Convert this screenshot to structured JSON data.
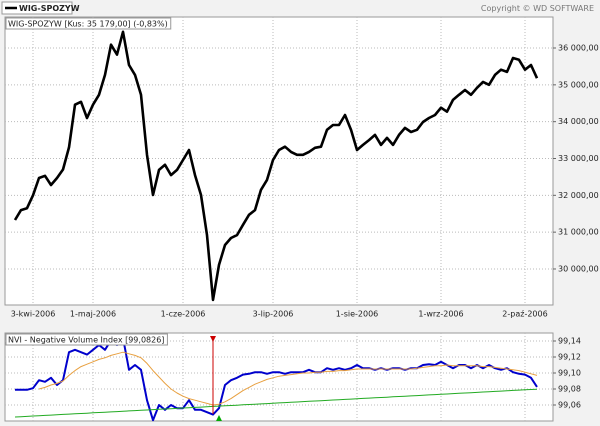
{
  "header": {
    "legend": "WIG-SPOZYW",
    "copyright": "Copyright © WD SOFTWARE"
  },
  "chart_data": [
    {
      "type": "line",
      "title": "WIG-SPOZYW [Kus: 35 179,00] (-0,83%)",
      "categories": [
        null,
        null,
        null,
        "3-kwi-2006",
        null,
        null,
        null,
        null,
        null,
        null,
        null,
        null,
        null,
        "1-maj-2006",
        null,
        null,
        null,
        null,
        null,
        null,
        null,
        null,
        null,
        null,
        null,
        null,
        null,
        null,
        "1-cze-2006",
        null,
        null,
        null,
        null,
        null,
        null,
        null,
        null,
        null,
        null,
        null,
        null,
        null,
        null,
        "3-lip-2006",
        null,
        null,
        null,
        null,
        null,
        null,
        null,
        null,
        null,
        null,
        null,
        null,
        null,
        "1-sie-2006",
        null,
        null,
        null,
        null,
        null,
        null,
        null,
        null,
        null,
        null,
        null,
        null,
        null,
        "1-wrz-2006",
        null,
        null,
        null,
        null,
        null,
        null,
        null,
        null,
        null,
        null,
        null,
        null,
        null,
        "2-paź-2006",
        null,
        null
      ],
      "series": [
        {
          "name": "WIG-SPOZYW",
          "color": "#000000",
          "values": [
            31330,
            31600,
            31650,
            32000,
            32470,
            32530,
            32280,
            32470,
            32700,
            33300,
            34460,
            34540,
            34100,
            34460,
            34730,
            35270,
            36090,
            35820,
            36440,
            35540,
            35270,
            34730,
            33100,
            32010,
            32690,
            32830,
            32550,
            32690,
            32960,
            33230,
            32550,
            32010,
            30920,
            29160,
            30110,
            30650,
            30840,
            30920,
            31200,
            31470,
            31600,
            32150,
            32420,
            32960,
            33230,
            33320,
            33180,
            33100,
            33100,
            33180,
            33290,
            33320,
            33780,
            33910,
            33910,
            34180,
            33780,
            33230,
            33370,
            33500,
            33640,
            33370,
            33560,
            33370,
            33640,
            33830,
            33720,
            33780,
            33990,
            34100,
            34180,
            34380,
            34270,
            34590,
            34730,
            34860,
            34730,
            34920,
            35080,
            35000,
            35270,
            35410,
            35350,
            35730,
            35680,
            35410,
            35540,
            35179
          ]
        }
      ],
      "ylim": [
        29022,
        36842
      ],
      "yticks": [
        {
          "value": 30000,
          "label": "30 000,00"
        },
        {
          "value": 31000,
          "label": "31 000,00"
        },
        {
          "value": 32000,
          "label": "32 000,00"
        },
        {
          "value": 33000,
          "label": "33 000,00"
        },
        {
          "value": 34000,
          "label": "34 000,00"
        },
        {
          "value": 35000,
          "label": "35 000,00"
        },
        {
          "value": 36000,
          "label": "36 000,00"
        }
      ],
      "grid": true
    },
    {
      "type": "line",
      "title": "NVI - Negative Volume Index [99,0826]",
      "series": [
        {
          "color": "#0000cc",
          "values": [
            99.079,
            99.079,
            99.079,
            99.081,
            99.091,
            99.089,
            99.094,
            99.085,
            99.091,
            99.126,
            99.129,
            99.126,
            99.123,
            99.129,
            99.135,
            99.129,
            99.141,
            99.135,
            99.144,
            99.104,
            99.11,
            99.104,
            99.066,
            99.041,
            99.06,
            99.054,
            99.06,
            99.056,
            99.056,
            99.066,
            99.054,
            99.054,
            99.051,
            99.048,
            99.056,
            99.085,
            99.091,
            99.094,
            99.098,
            99.099,
            99.101,
            99.101,
            99.099,
            99.101,
            99.101,
            99.099,
            99.101,
            99.101,
            99.101,
            99.104,
            99.101,
            99.101,
            99.106,
            99.104,
            99.106,
            99.104,
            99.106,
            99.11,
            99.106,
            99.106,
            99.104,
            99.106,
            99.104,
            99.106,
            99.106,
            99.104,
            99.106,
            99.106,
            99.11,
            99.111,
            99.11,
            99.114,
            99.11,
            99.106,
            99.11,
            99.11,
            99.106,
            99.11,
            99.106,
            99.11,
            99.106,
            99.104,
            99.106,
            99.101,
            99.099,
            99.098,
            99.094,
            99.0826
          ]
        },
        {
          "color": "#e8a040",
          "values": [
            null,
            null,
            null,
            null,
            99.08,
            99.082,
            99.085,
            99.087,
            99.09,
            99.097,
            99.103,
            99.108,
            99.111,
            99.114,
            99.117,
            99.119,
            99.122,
            99.124,
            99.126,
            99.124,
            99.122,
            99.119,
            99.112,
            99.103,
            99.095,
            99.087,
            99.08,
            99.075,
            99.071,
            99.068,
            99.066,
            99.064,
            99.062,
            99.06,
            99.061,
            99.064,
            99.068,
            99.073,
            99.078,
            99.082,
            99.086,
            99.089,
            99.092,
            99.094,
            99.096,
            99.097,
            99.098,
            99.099,
            99.1,
            99.1,
            99.101,
            99.101,
            99.102,
            99.102,
            99.103,
            99.103,
            99.104,
            99.105,
            99.105,
            99.105,
            99.105,
            99.105,
            99.105,
            99.105,
            99.105,
            99.105,
            99.105,
            99.106,
            99.107,
            99.108,
            99.109,
            99.109,
            99.11,
            99.109,
            99.109,
            99.109,
            99.109,
            99.109,
            99.108,
            99.108,
            99.107,
            99.106,
            99.105,
            99.104,
            99.103,
            99.101,
            99.099,
            99.097
          ]
        },
        {
          "color": "#22aa22",
          "values": [
            99.045,
            99.0454,
            99.0458,
            99.0462,
            99.0466,
            99.047,
            99.0474,
            99.0478,
            99.0482,
            99.0486,
            99.049,
            99.0494,
            99.0498,
            99.0502,
            99.0506,
            99.051,
            99.0514,
            99.0518,
            99.0522,
            99.0526,
            99.053,
            99.0534,
            99.0538,
            99.0542,
            99.0546,
            99.055,
            99.0554,
            99.0558,
            99.0562,
            99.0566,
            99.057,
            99.0574,
            99.0578,
            99.0582,
            99.0586,
            99.059,
            99.0594,
            99.0598,
            99.0602,
            99.0606,
            99.061,
            99.0614,
            99.0618,
            99.0622,
            99.0626,
            99.063,
            99.0634,
            99.0638,
            99.0642,
            99.0646,
            99.065,
            99.0654,
            99.0658,
            99.0662,
            99.0666,
            99.067,
            99.0674,
            99.0678,
            99.0682,
            99.0686,
            99.069,
            99.0694,
            99.0698,
            99.0702,
            99.0706,
            99.071,
            99.0714,
            99.0718,
            99.0722,
            99.0726,
            99.073,
            99.0734,
            99.0738,
            99.0742,
            99.0746,
            99.075,
            99.0754,
            99.0758,
            99.0762,
            99.0766,
            99.077,
            99.0774,
            99.0778,
            99.0782,
            99.0786,
            99.079,
            99.0794,
            99.0798
          ]
        }
      ],
      "ylim": [
        99.04,
        99.15
      ],
      "yticks": [
        {
          "value": 99.06,
          "label": "99,06"
        },
        {
          "value": 99.08,
          "label": "99,08"
        },
        {
          "value": 99.1,
          "label": "99,10"
        },
        {
          "value": 99.12,
          "label": "99,12"
        },
        {
          "value": 99.14,
          "label": "99,14"
        }
      ],
      "grid": true
    }
  ]
}
